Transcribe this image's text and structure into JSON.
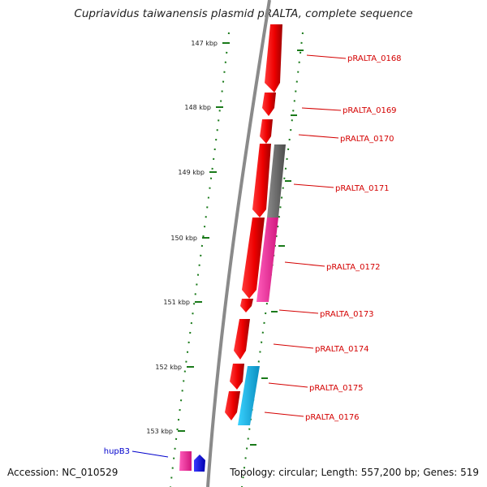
{
  "title": "Cupriavidus taiwanensis plasmid pRALTA, complete sequence",
  "footer": {
    "accession": "Accession: NC_010529",
    "summary": "Topology: circular; Length: 557,200 bp; Genes: 519"
  },
  "colors": {
    "backbone": "#888888",
    "tick": "#1a7a1a",
    "gene_red": "#ff0000",
    "gene_grey": "#707070",
    "gene_magenta": "#ff2ca0",
    "gene_cyan": "#19c3f0",
    "gene_blue": "#1010ff",
    "label_red": "#d40000",
    "label_blue": "#0000cc"
  },
  "scale_ticks": [
    "147 kbp",
    "148 kbp",
    "149 kbp",
    "150 kbp",
    "151 kbp",
    "152 kbp",
    "153 kbp"
  ],
  "gene_labels": [
    {
      "text": "pRALTA_0168",
      "color": "red"
    },
    {
      "text": "pRALTA_0169",
      "color": "red"
    },
    {
      "text": "pRALTA_0170",
      "color": "red"
    },
    {
      "text": "pRALTA_0171",
      "color": "red"
    },
    {
      "text": "pRALTA_0172",
      "color": "red"
    },
    {
      "text": "pRALTA_0173",
      "color": "red"
    },
    {
      "text": "pRALTA_0174",
      "color": "red"
    },
    {
      "text": "pRALTA_0175",
      "color": "red"
    },
    {
      "text": "pRALTA_0176",
      "color": "red"
    },
    {
      "text": "hupB3",
      "color": "blue"
    }
  ]
}
